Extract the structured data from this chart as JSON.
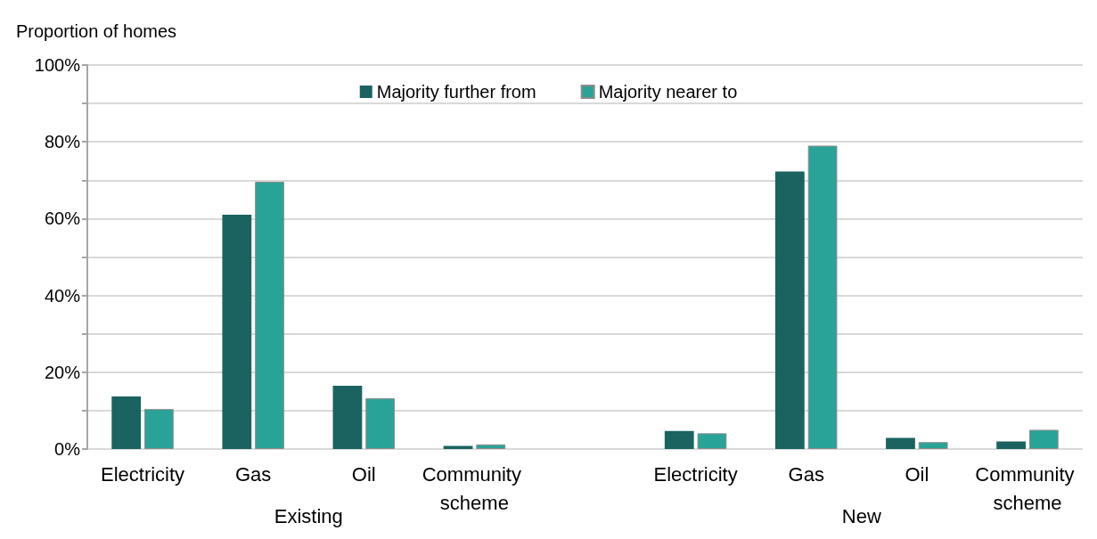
{
  "chart_data": {
    "type": "bar",
    "ylabel": "Proportion of homes",
    "categories": [
      "Electricity",
      "Gas",
      "Oil",
      "Community scheme",
      null,
      "Electricity",
      "Gas",
      "Oil",
      "Community scheme"
    ],
    "series": [
      {
        "name": "Majority further from",
        "color": "#1b6360",
        "values": [
          13.7,
          61,
          16.5,
          0.8,
          null,
          4.7,
          72.3,
          2.9,
          2.0
        ]
      },
      {
        "name": "Majority nearer to",
        "color": "#29a398",
        "values": [
          10.4,
          69.6,
          13.2,
          1.2,
          null,
          4.1,
          79,
          1.8,
          5.0
        ]
      }
    ],
    "ylim": [
      0,
      100
    ],
    "yticks": [
      {
        "value": 0,
        "label": "0%"
      },
      {
        "value": 10,
        "label": null
      },
      {
        "value": 20,
        "label": "20%"
      },
      {
        "value": 30,
        "label": null
      },
      {
        "value": 40,
        "label": "40%"
      },
      {
        "value": 50,
        "label": null
      },
      {
        "value": 60,
        "label": "60%"
      },
      {
        "value": 70,
        "label": null
      },
      {
        "value": 80,
        "label": "80%"
      },
      {
        "value": 90,
        "label": null
      },
      {
        "value": 100,
        "label": "100%"
      }
    ],
    "annotations": [
      "Existing",
      "New"
    ],
    "grid": "y",
    "legend": "top"
  }
}
